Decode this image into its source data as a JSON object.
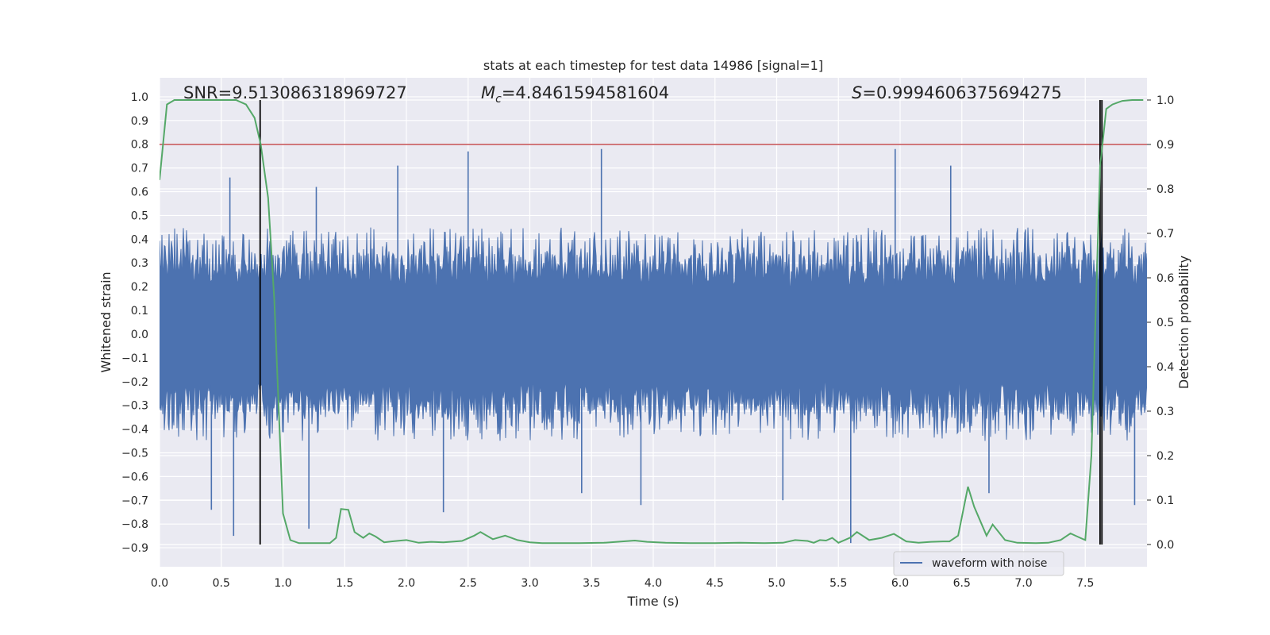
{
  "chart_data": {
    "type": "line",
    "title": "stats at each timestep for test data 14986 [signal=1]",
    "xlabel": "Time (s)",
    "ylabel_left": "Whitened strain",
    "ylabel_right": "Detection probability",
    "xlim": [
      0.0,
      8.0
    ],
    "ylim_left": [
      -0.98,
      1.08
    ],
    "ylim_right": [
      -0.05,
      1.05
    ],
    "x_ticks": [
      0.0,
      0.5,
      1.0,
      1.5,
      2.0,
      2.5,
      3.0,
      3.5,
      4.0,
      4.5,
      5.0,
      5.5,
      6.0,
      6.5,
      7.0,
      7.5
    ],
    "x_tick_labels": [
      "0.0",
      "0.5",
      "1.0",
      "1.5",
      "2.0",
      "2.5",
      "3.0",
      "3.5",
      "4.0",
      "4.5",
      "5.0",
      "5.5",
      "6.0",
      "6.5",
      "7.0",
      "7.5"
    ],
    "y_left_ticks": [
      -0.9,
      -0.8,
      -0.7,
      -0.6,
      -0.5,
      -0.4,
      -0.3,
      -0.2,
      -0.1,
      0.0,
      0.1,
      0.2,
      0.3,
      0.4,
      0.5,
      0.6,
      0.7,
      0.8,
      0.9,
      1.0
    ],
    "y_left_tick_labels": [
      "−0.9",
      "−0.8",
      "−0.7",
      "−0.6",
      "−0.5",
      "−0.4",
      "−0.3",
      "−0.2",
      "−0.1",
      "0.0",
      "0.1",
      "0.2",
      "0.3",
      "0.4",
      "0.5",
      "0.6",
      "0.7",
      "0.8",
      "0.9",
      "1.0"
    ],
    "y_right_ticks": [
      0.0,
      0.1,
      0.2,
      0.3,
      0.4,
      0.5,
      0.6,
      0.7,
      0.8,
      0.9,
      1.0
    ],
    "y_right_tick_labels": [
      "0.0",
      "0.1",
      "0.2",
      "0.3",
      "0.4",
      "0.5",
      "0.6",
      "0.7",
      "0.8",
      "0.9",
      "1.0"
    ],
    "annotations": {
      "snr": "SNR=9.513086318969727",
      "mc_symbol": "M",
      "mc_sub": "c",
      "mc_value": "=4.8461594581604",
      "s_symbol": "S",
      "s_value": "=0.9994606375694275"
    },
    "threshold_line": {
      "y_right": 0.9,
      "color": "#c44e52"
    },
    "vertical_markers_x": [
      0.815,
      7.62,
      7.635
    ],
    "waveform": {
      "name": "waveform with noise",
      "color": "#4c72b0",
      "core_amplitude": 0.2,
      "typical_peak": 0.45,
      "notable_spikes": [
        {
          "x": 0.57,
          "y": 0.66
        },
        {
          "x": 1.27,
          "y": 0.62
        },
        {
          "x": 1.93,
          "y": 0.71
        },
        {
          "x": 2.5,
          "y": 0.77
        },
        {
          "x": 3.58,
          "y": 0.78
        },
        {
          "x": 5.96,
          "y": 0.78
        },
        {
          "x": 6.41,
          "y": 0.71
        },
        {
          "x": 0.6,
          "y": -0.85
        },
        {
          "x": 1.21,
          "y": -0.82
        },
        {
          "x": 2.3,
          "y": -0.75
        },
        {
          "x": 3.42,
          "y": -0.67
        },
        {
          "x": 3.9,
          "y": -0.72
        },
        {
          "x": 5.05,
          "y": -0.7
        },
        {
          "x": 5.6,
          "y": -0.88
        },
        {
          "x": 6.72,
          "y": -0.67
        },
        {
          "x": 7.9,
          "y": -0.72
        },
        {
          "x": 0.42,
          "y": -0.74
        }
      ]
    },
    "detection_probability": {
      "color": "#55a868",
      "x": [
        0.0,
        0.06,
        0.12,
        0.3,
        0.5,
        0.62,
        0.7,
        0.77,
        0.82,
        0.88,
        0.93,
        1.0,
        1.06,
        1.13,
        1.2,
        1.27,
        1.33,
        1.38,
        1.43,
        1.47,
        1.53,
        1.58,
        1.65,
        1.7,
        1.75,
        1.82,
        1.88,
        2.0,
        2.1,
        2.2,
        2.3,
        2.45,
        2.55,
        2.6,
        2.7,
        2.8,
        2.85,
        2.9,
        3.0,
        3.1,
        3.2,
        3.4,
        3.6,
        3.75,
        3.85,
        3.95,
        4.1,
        4.3,
        4.5,
        4.7,
        4.9,
        5.05,
        5.15,
        5.25,
        5.3,
        5.35,
        5.4,
        5.45,
        5.5,
        5.6,
        5.65,
        5.75,
        5.85,
        5.95,
        6.05,
        6.15,
        6.25,
        6.35,
        6.4,
        6.47,
        6.55,
        6.6,
        6.7,
        6.75,
        6.85,
        6.95,
        7.1,
        7.2,
        7.3,
        7.38,
        7.45,
        7.5,
        7.55,
        7.62,
        7.67,
        7.72,
        7.8,
        7.88,
        7.97
      ],
      "y": [
        0.82,
        0.99,
        1.0,
        1.0,
        1.0,
        1.0,
        0.99,
        0.96,
        0.9,
        0.78,
        0.55,
        0.07,
        0.01,
        0.003,
        0.003,
        0.003,
        0.003,
        0.003,
        0.015,
        0.08,
        0.078,
        0.028,
        0.015,
        0.025,
        0.018,
        0.005,
        0.007,
        0.01,
        0.004,
        0.006,
        0.005,
        0.008,
        0.02,
        0.028,
        0.012,
        0.02,
        0.015,
        0.01,
        0.005,
        0.003,
        0.003,
        0.003,
        0.004,
        0.007,
        0.009,
        0.006,
        0.004,
        0.003,
        0.003,
        0.004,
        0.003,
        0.004,
        0.01,
        0.008,
        0.004,
        0.01,
        0.009,
        0.015,
        0.004,
        0.016,
        0.028,
        0.01,
        0.015,
        0.024,
        0.007,
        0.004,
        0.006,
        0.007,
        0.007,
        0.02,
        0.13,
        0.085,
        0.02,
        0.045,
        0.01,
        0.004,
        0.003,
        0.004,
        0.01,
        0.025,
        0.016,
        0.01,
        0.2,
        0.85,
        0.98,
        0.99,
        0.998,
        1.0,
        1.0
      ]
    },
    "legend": {
      "placement": "lower-right",
      "entries": [
        {
          "label": "waveform with noise",
          "color": "#4c72b0"
        }
      ]
    },
    "grid": true,
    "style": {
      "axes_facecolor": "#eaeaf2",
      "grid_color": "#ffffff"
    }
  }
}
